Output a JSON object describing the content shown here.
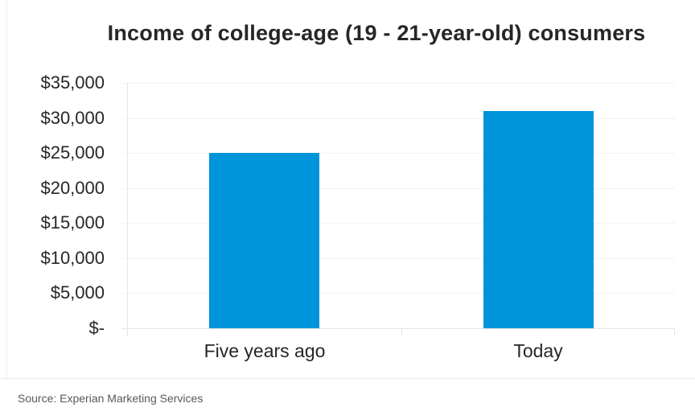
{
  "chart_data": {
    "type": "bar",
    "title": "Income of college-age (19 - 21-year-old) consumers",
    "categories": [
      "Five years ago",
      "Today"
    ],
    "values": [
      25000,
      31000
    ],
    "ylim": [
      0,
      35000
    ],
    "ytick_step": 5000,
    "ytick_labels": [
      "$35,000",
      "$30,000",
      "$25,000",
      "$20,000",
      "$15,000",
      "$10,000",
      "$5,000",
      "$-"
    ],
    "xlabel": "",
    "ylabel": "",
    "grid": true,
    "legend": "none",
    "bar_color": "#0094da"
  },
  "footer": {
    "source": "Source: Experian Marketing Services"
  },
  "colors": {
    "background": "#ffffff",
    "title_text": "#262626",
    "axis_text": "#262626",
    "source_text": "#595959",
    "bar": "#0094da",
    "gridline": "#f3f2f1",
    "axis_line": "#e7e5e4",
    "frame_border": "#ebebeb"
  }
}
